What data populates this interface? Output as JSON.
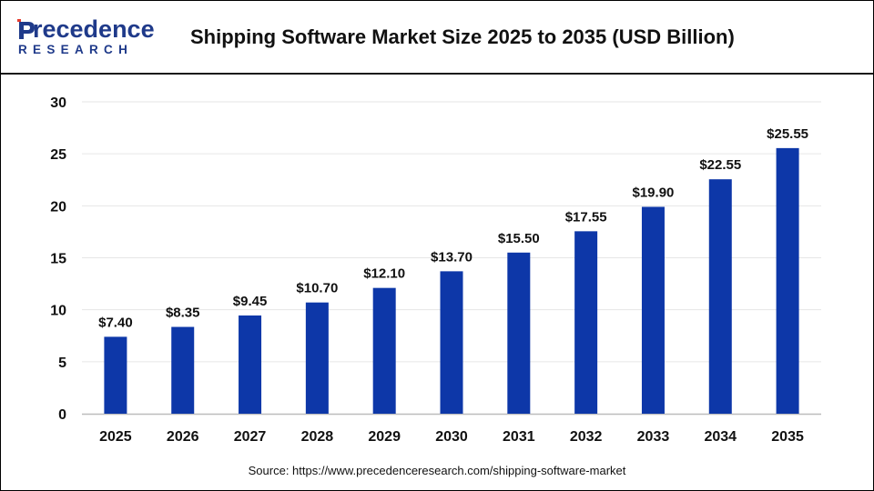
{
  "logo": {
    "line1_first": "P",
    "line1_rest": "recedence",
    "line2": "RESEARCH"
  },
  "title": "Shipping Software Market Size 2025 to 2035 (USD Billion)",
  "source": "Source: https://www.precedenceresearch.com/shipping-software-market",
  "colors": {
    "bar": "#0d37a8",
    "brand": "#1f3a8a",
    "grid": "#e6e6e6"
  },
  "chart_data": {
    "type": "bar",
    "title": "Shipping Software Market Size 2025 to 2035 (USD Billion)",
    "categories": [
      "2025",
      "2026",
      "2027",
      "2028",
      "2029",
      "2030",
      "2031",
      "2032",
      "2033",
      "2034",
      "2035"
    ],
    "values": [
      7.4,
      8.35,
      9.45,
      10.7,
      12.1,
      13.7,
      15.5,
      17.55,
      19.9,
      22.55,
      25.55
    ],
    "data_labels": [
      "$7.40",
      "$8.35",
      "$9.45",
      "$10.70",
      "$12.10",
      "$13.70",
      "$15.50",
      "$17.55",
      "$19.90",
      "$22.55",
      "$25.55"
    ],
    "yticks": [
      "0",
      "5",
      "10",
      "15",
      "20",
      "25",
      "30"
    ],
    "ylim": [
      0,
      30
    ],
    "xlabel": "",
    "ylabel": "",
    "grid": true,
    "legend": "none"
  }
}
